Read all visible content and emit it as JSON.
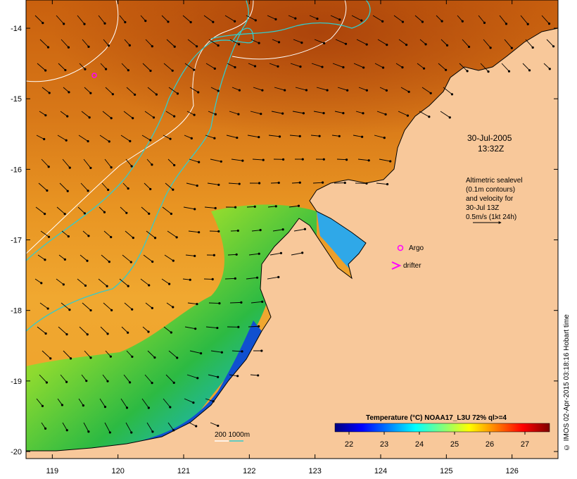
{
  "date_label": "30-Jul-2005",
  "time_label": "13:32Z",
  "altimetry_note": {
    "line1": "Altimetric sealevel",
    "line2": "(0.1m contours)",
    "line3": "and velocity for",
    "line4": "30-Jul 13Z",
    "line5": "0.5m/s (1kt 24h)"
  },
  "legend_argo": "Argo",
  "legend_drifter": "drifter",
  "isobath_label": "200  1000m",
  "colorbar": {
    "title": "Temperature (°C) NOAA17_L3U 72% ql>=4",
    "ticks": [
      "22",
      "23",
      "24",
      "25",
      "26",
      "27"
    ],
    "range": [
      21.6,
      27.7
    ],
    "colors": [
      "#00007f",
      "#0000ff",
      "#007fff",
      "#00ffff",
      "#7fff7f",
      "#ffff00",
      "#ff7f00",
      "#ff0000",
      "#7f0000"
    ]
  },
  "credit": "© IMOS 02-Apr-2015 03:18:16 Hobart time",
  "axes": {
    "lon_ticks": [
      "119",
      "120",
      "121",
      "122",
      "123",
      "124",
      "125",
      "126"
    ],
    "lat_ticks": [
      "-14",
      "-15",
      "-16",
      "-17",
      "-18",
      "-19",
      "-20"
    ],
    "lon_range": [
      118.6,
      126.7
    ],
    "lat_range": [
      -20.1,
      -13.6
    ]
  },
  "colors": {
    "land": "#f8c89a",
    "warm_sst": "#d06a12",
    "cool_sst": "#f0a830",
    "coast_green": "#33cc33",
    "coast_blue": "#0033cc",
    "isobath_200": "#ffffff",
    "isobath_1000": "#33cccc",
    "marker": "#ff00ff"
  }
}
